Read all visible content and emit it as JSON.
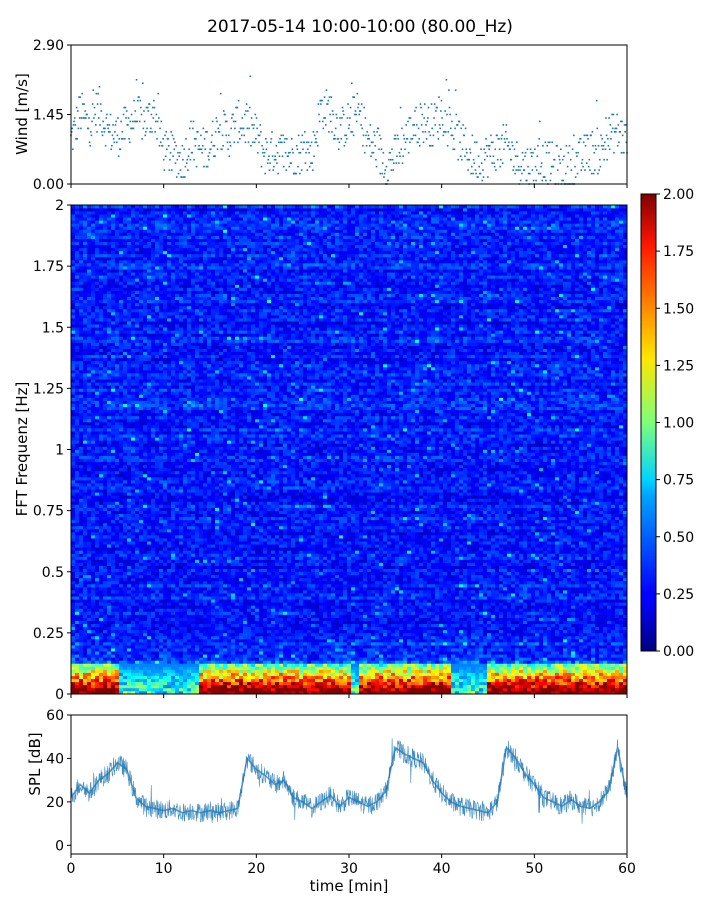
{
  "figure": {
    "title": "2017-05-14 10:00-10:00 (80.00_Hz)"
  },
  "chart_data": [
    {
      "type": "scatter",
      "panel": "wind",
      "ylabel": "Wind [m/s]",
      "xlim": [
        0,
        60
      ],
      "ylim": [
        0,
        2.9
      ],
      "yticks": [
        "0.00",
        "1.45",
        "2.90"
      ],
      "marker_color": "#1f77b4",
      "series": [
        {
          "x": [
            0,
            1,
            2,
            3,
            4,
            5,
            6,
            7,
            8,
            9,
            10,
            11,
            12,
            13,
            14,
            15,
            16,
            17,
            18,
            19,
            20,
            21,
            22,
            23,
            24,
            25,
            26,
            27,
            28,
            29,
            30,
            31,
            32,
            33,
            34,
            35,
            36,
            37,
            38,
            39,
            40,
            41,
            42,
            43,
            44,
            45,
            46,
            47,
            48,
            49,
            50,
            51,
            52,
            53,
            54,
            55,
            56,
            57,
            58,
            59,
            60
          ],
          "values": [
            0.9,
            1.5,
            1.2,
            1.6,
            1.1,
            1.0,
            1.2,
            1.4,
            1.3,
            1.5,
            0.7,
            0.6,
            0.5,
            0.9,
            0.7,
            0.8,
            1.2,
            1.0,
            1.3,
            1.2,
            1.0,
            0.6,
            0.7,
            0.6,
            0.6,
            0.7,
            0.6,
            1.6,
            1.5,
            1.1,
            1.3,
            1.5,
            0.9,
            0.7,
            0.4,
            0.6,
            0.9,
            1.2,
            1.3,
            1.2,
            1.5,
            1.1,
            0.9,
            0.6,
            0.5,
            0.6,
            0.7,
            0.8,
            0.5,
            0.4,
            0.4,
            0.5,
            0.4,
            0.3,
            0.4,
            0.5,
            0.7,
            0.6,
            1.0,
            1.1,
            0.9
          ]
        }
      ]
    },
    {
      "type": "heatmap",
      "panel": "spectrogram",
      "ylabel": "FFT Frequenz [Hz]",
      "xlim": [
        0,
        60
      ],
      "ylim": [
        0,
        2
      ],
      "yticks": [
        "0",
        "0.25",
        "0.5",
        "0.75",
        "1",
        "1.25",
        "1.5",
        "1.75",
        "2"
      ],
      "colormap": "jet",
      "colorbar": {
        "min": 0,
        "max": 2,
        "ticks": [
          "0.00",
          "0.25",
          "0.50",
          "0.75",
          "1.00",
          "1.25",
          "1.50",
          "1.75",
          "2.00"
        ]
      },
      "low_frequency_band": {
        "y_range_hz": [
          0,
          0.12
        ],
        "high_intensity_time_ranges_min": [
          [
            0,
            5
          ],
          [
            14,
            30
          ],
          [
            31,
            41
          ],
          [
            45,
            60
          ]
        ]
      },
      "typical_intensity_above_band": 0.3
    },
    {
      "type": "line",
      "panel": "spl",
      "ylabel": "SPL [dB]",
      "xlabel": "time [min]",
      "xlim": [
        0,
        60
      ],
      "ylim": [
        -4,
        60
      ],
      "yticks": [
        "0",
        "20",
        "40",
        "60"
      ],
      "xticks": [
        "0",
        "10",
        "20",
        "30",
        "40",
        "50",
        "60"
      ],
      "line_color": "#1f77b4",
      "series": [
        {
          "x": [
            0,
            1,
            2,
            3,
            4,
            5,
            6,
            7,
            8,
            9,
            10,
            11,
            12,
            13,
            14,
            15,
            16,
            17,
            18,
            19,
            20,
            21,
            22,
            23,
            24,
            25,
            26,
            27,
            28,
            29,
            30,
            31,
            32,
            33,
            34,
            35,
            36,
            37,
            38,
            39,
            40,
            41,
            42,
            43,
            44,
            45,
            46,
            47,
            48,
            49,
            50,
            51,
            52,
            53,
            54,
            55,
            56,
            57,
            58,
            59,
            60
          ],
          "values": [
            22,
            28,
            24,
            30,
            33,
            38,
            35,
            22,
            18,
            17,
            16,
            17,
            15,
            16,
            15,
            16,
            15,
            16,
            17,
            40,
            35,
            32,
            28,
            30,
            22,
            20,
            17,
            20,
            23,
            18,
            22,
            20,
            18,
            20,
            25,
            45,
            42,
            40,
            38,
            30,
            24,
            20,
            18,
            17,
            16,
            15,
            20,
            45,
            40,
            33,
            28,
            22,
            20,
            18,
            21,
            18,
            17,
            20,
            25,
            45,
            22
          ]
        }
      ]
    }
  ]
}
